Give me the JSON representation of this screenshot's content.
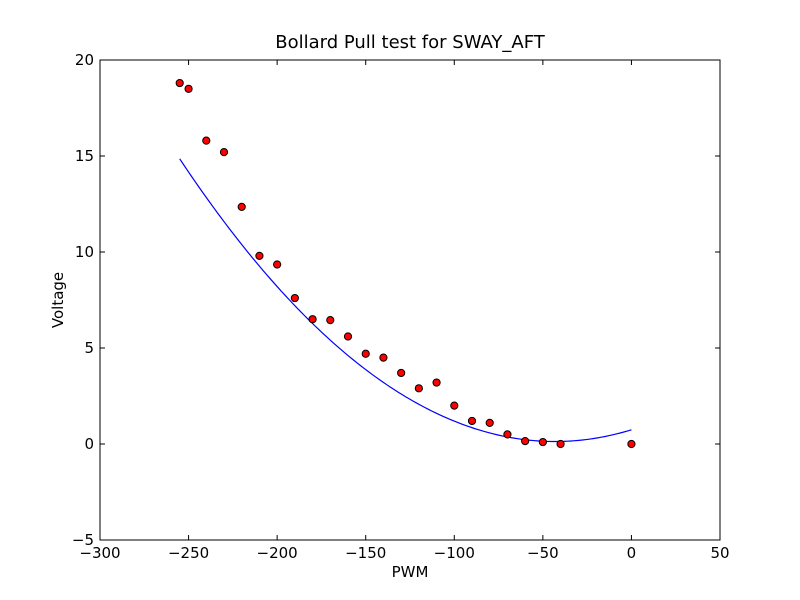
{
  "chart_data": {
    "type": "scatter",
    "title": "Bollard Pull test for SWAY_AFT",
    "xlabel": "PWM",
    "ylabel": "Voltage",
    "xlim": [
      -300,
      50
    ],
    "ylim": [
      -5,
      20
    ],
    "xticks": [
      -300,
      -250,
      -200,
      -150,
      -100,
      -50,
      0,
      50
    ],
    "yticks": [
      -5,
      0,
      5,
      10,
      15,
      20
    ],
    "xtick_labels": [
      "−300",
      "−250",
      "−200",
      "−150",
      "−100",
      "−50",
      "0",
      "50"
    ],
    "ytick_labels": [
      "−5",
      "0",
      "5",
      "10",
      "15",
      "20"
    ],
    "grid": false,
    "series": [
      {
        "kind": "scatter",
        "color": "#ff0000",
        "edge_color": "#000000",
        "x": [
          -255,
          -250,
          -240,
          -230,
          -220,
          -210,
          -200,
          -190,
          -180,
          -170,
          -160,
          -150,
          -140,
          -130,
          -120,
          -110,
          -100,
          -90,
          -80,
          -70,
          -60,
          -50,
          -40,
          0
        ],
        "y": [
          18.8,
          18.5,
          15.8,
          15.2,
          12.35,
          9.8,
          9.35,
          7.6,
          6.5,
          6.45,
          5.6,
          4.7,
          4.5,
          3.7,
          2.9,
          3.2,
          2.0,
          1.2,
          1.1,
          0.5,
          0.15,
          0.1,
          0.0,
          0.0
        ]
      },
      {
        "kind": "line",
        "color": "#0000ff",
        "fit": "quadratic",
        "x_range": [
          -255,
          0
        ],
        "coefficients": [
          0.000328,
          0.0283,
          0.74
        ]
      }
    ]
  }
}
